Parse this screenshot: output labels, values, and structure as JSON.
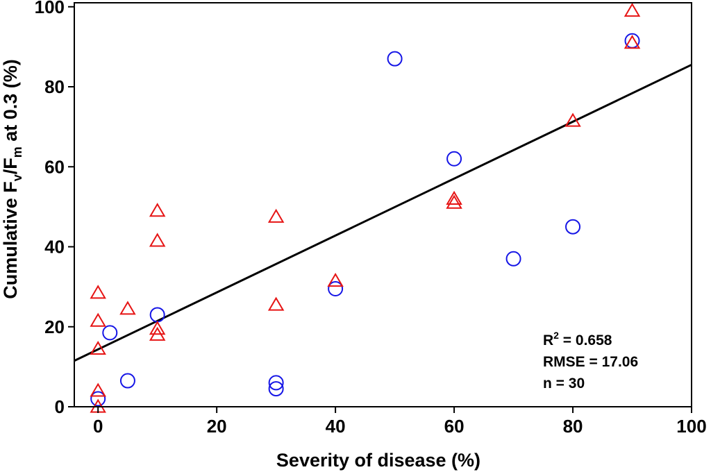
{
  "chart_data": {
    "type": "scatter",
    "xlabel": "Severity of disease (%)",
    "ylabel": {
      "pre": "Cumulative F",
      "sub1": "v",
      "mid": "/F",
      "sub2": "m",
      "post": " at 0.3 (%)"
    },
    "xlim": [
      -4,
      100
    ],
    "ylim": [
      0,
      101
    ],
    "x_ticks": [
      0,
      20,
      40,
      60,
      80,
      100
    ],
    "y_ticks": [
      0,
      20,
      40,
      60,
      80,
      100
    ],
    "grid": false,
    "colors": {
      "circles": "#1515e6",
      "triangles": "#e61414",
      "fit": "#000000"
    },
    "series": [
      {
        "marker": "circle",
        "points": [
          [
            0,
            2
          ],
          [
            2,
            18.5
          ],
          [
            5,
            6.5
          ],
          [
            10,
            23
          ],
          [
            30,
            6
          ],
          [
            30,
            4.5
          ],
          [
            40,
            29.5
          ],
          [
            50,
            87
          ],
          [
            60,
            62
          ],
          [
            70,
            37
          ],
          [
            80,
            45
          ],
          [
            90,
            91.5
          ]
        ]
      },
      {
        "marker": "triangle",
        "points": [
          [
            0,
            0
          ],
          [
            0,
            4
          ],
          [
            0,
            14.5
          ],
          [
            0,
            21.5
          ],
          [
            0,
            28.5
          ],
          [
            5,
            24.5
          ],
          [
            10,
            49
          ],
          [
            10,
            41.5
          ],
          [
            10,
            19.5
          ],
          [
            10,
            18
          ],
          [
            30,
            47.5
          ],
          [
            30,
            25.5
          ],
          [
            40,
            31.5
          ],
          [
            60,
            52
          ],
          [
            60,
            51
          ],
          [
            80,
            71.5
          ],
          [
            90,
            99
          ],
          [
            90,
            91
          ]
        ]
      }
    ],
    "fit_line": {
      "x": [
        -4,
        100
      ],
      "y": [
        11.5,
        85.5
      ]
    },
    "stats": {
      "r2_label": "R",
      "r2_sup": "2",
      "r2_value": " = 0.658",
      "rmse": "RMSE = 17.06",
      "n": "n = 30"
    }
  }
}
